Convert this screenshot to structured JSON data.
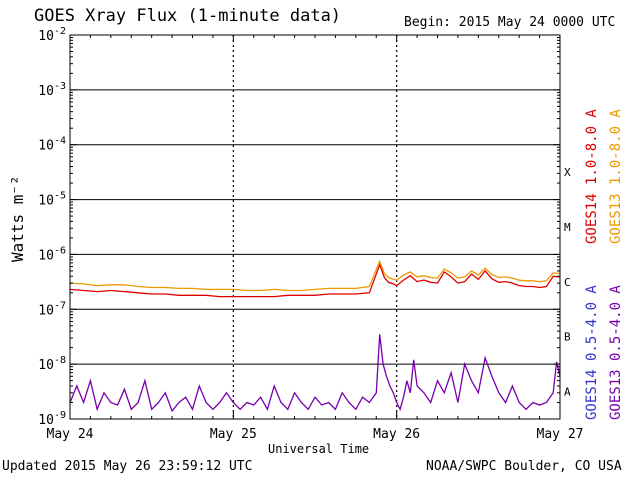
{
  "header": {
    "title": "GOES Xray Flux (1-minute data)",
    "begin": "Begin:  2015 May 24 0000 UTC"
  },
  "footer": {
    "updated": "Updated 2015 May 26 23:59:12 UTC",
    "credit": "NOAA/SWPC Boulder, CO USA"
  },
  "chart_data": {
    "type": "line",
    "title": "GOES Xray Flux (1-minute data)",
    "xlabel": "Universal Time",
    "ylabel": "Watts m⁻²",
    "yscale": "log",
    "ylim": [
      1e-09,
      0.01
    ],
    "xlim": [
      0,
      72
    ],
    "x_unit_note": "hours after 2015 May 24 0000 UTC",
    "x_ticks": [
      {
        "x": 0,
        "label": "May 24"
      },
      {
        "x": 24,
        "label": "May 25"
      },
      {
        "x": 48,
        "label": "May 26"
      },
      {
        "x": 72,
        "label": "May 27"
      }
    ],
    "y_ticks": [
      {
        "exp": -2,
        "label": "10-2"
      },
      {
        "exp": -3,
        "label": "10-3"
      },
      {
        "exp": -4,
        "label": "10-4"
      },
      {
        "exp": -5,
        "label": "10-5"
      },
      {
        "exp": -6,
        "label": "10-6"
      },
      {
        "exp": -7,
        "label": "10-7"
      },
      {
        "exp": -8,
        "label": "10-8"
      },
      {
        "exp": -9,
        "label": "10-9"
      }
    ],
    "flare_classes": [
      {
        "label": "X",
        "exp": -4
      },
      {
        "label": "M",
        "exp": -5
      },
      {
        "label": "C",
        "exp": -6
      },
      {
        "label": "B",
        "exp": -7
      },
      {
        "label": "A",
        "exp": -8
      }
    ],
    "grid": true,
    "legend_right": [
      {
        "label": "GOES14 1.0-8.0 A",
        "color": "#dd0000"
      },
      {
        "label": "GOES13 1.0-8.0 A",
        "color": "#ee9900"
      },
      {
        "label": "GOES14 0.5-4.0 A",
        "color": "#3333cc"
      },
      {
        "label": "GOES13 0.5-4.0 A",
        "color": "#7700aa"
      }
    ],
    "series": [
      {
        "name": "GOES13 1.0-8.0 A",
        "color": "#ee9900",
        "x": [
          0,
          2,
          4,
          6,
          8,
          10,
          12,
          14,
          16,
          18,
          20,
          22,
          24,
          26,
          28,
          30,
          32,
          34,
          36,
          38,
          40,
          42,
          44,
          45.5,
          46.2,
          46.8,
          47.5,
          48,
          49,
          50,
          51,
          52,
          53,
          54,
          55,
          56,
          57,
          58,
          59,
          60,
          61,
          62,
          63,
          64,
          65,
          66,
          67,
          68,
          69,
          70,
          71,
          72
        ],
        "y": [
          3e-07,
          2.9e-07,
          2.7e-07,
          2.8e-07,
          2.8e-07,
          2.6e-07,
          2.5e-07,
          2.5e-07,
          2.4e-07,
          2.4e-07,
          2.3e-07,
          2.3e-07,
          2.3e-07,
          2.2e-07,
          2.2e-07,
          2.3e-07,
          2.2e-07,
          2.2e-07,
          2.3e-07,
          2.4e-07,
          2.4e-07,
          2.4e-07,
          2.6e-07,
          7.5e-07,
          4.5e-07,
          3.8e-07,
          3.5e-07,
          3.4e-07,
          4.2e-07,
          4.8e-07,
          3.9e-07,
          4.1e-07,
          3.8e-07,
          3.7e-07,
          5.4e-07,
          4.6e-07,
          3.7e-07,
          3.9e-07,
          5e-07,
          4.2e-07,
          5.6e-07,
          4.3e-07,
          3.8e-07,
          3.9e-07,
          3.7e-07,
          3.4e-07,
          3.3e-07,
          3.3e-07,
          3.2e-07,
          3.3e-07,
          4.6e-07,
          4.5e-07
        ]
      },
      {
        "name": "GOES14 1.0-8.0 A",
        "color": "#dd0000",
        "x": [
          0,
          2,
          4,
          6,
          8,
          10,
          12,
          14,
          16,
          18,
          20,
          22,
          24,
          26,
          28,
          30,
          32,
          34,
          36,
          38,
          40,
          42,
          44,
          45.5,
          46.2,
          46.8,
          47.5,
          48,
          49,
          50,
          51,
          52,
          53,
          54,
          55,
          56,
          57,
          58,
          59,
          60,
          61,
          62,
          63,
          64,
          65,
          66,
          67,
          68,
          69,
          70,
          71,
          72
        ],
        "y": [
          2.3e-07,
          2.2e-07,
          2.1e-07,
          2.2e-07,
          2.1e-07,
          2e-07,
          1.9e-07,
          1.9e-07,
          1.8e-07,
          1.8e-07,
          1.8e-07,
          1.7e-07,
          1.7e-07,
          1.7e-07,
          1.7e-07,
          1.7e-07,
          1.8e-07,
          1.8e-07,
          1.8e-07,
          1.9e-07,
          1.9e-07,
          1.9e-07,
          2e-07,
          6.5e-07,
          3.8e-07,
          3.1e-07,
          2.9e-07,
          2.7e-07,
          3.4e-07,
          4.1e-07,
          3.2e-07,
          3.4e-07,
          3.1e-07,
          3e-07,
          4.8e-07,
          3.9e-07,
          3e-07,
          3.2e-07,
          4.4e-07,
          3.5e-07,
          5e-07,
          3.6e-07,
          3.1e-07,
          3.2e-07,
          3e-07,
          2.7e-07,
          2.6e-07,
          2.6e-07,
          2.5e-07,
          2.6e-07,
          4e-07,
          3.9e-07
        ]
      },
      {
        "name": "GOES13 0.5-4.0 A",
        "color": "#7700aa",
        "x": [
          0,
          1,
          2,
          3,
          4,
          5,
          6,
          7,
          8,
          9,
          10,
          11,
          12,
          13,
          14,
          15,
          16,
          17,
          18,
          19,
          20,
          21,
          22,
          23,
          24,
          25,
          26,
          27,
          28,
          29,
          30,
          31,
          32,
          33,
          34,
          35,
          36,
          37,
          38,
          39,
          40,
          41,
          42,
          43,
          44,
          45,
          45.5,
          46,
          46.5,
          47,
          47.5,
          48,
          48.5,
          49,
          49.5,
          50,
          50.5,
          51,
          52,
          53,
          54,
          55,
          56,
          57,
          58,
          59,
          60,
          61,
          62,
          63,
          64,
          65,
          66,
          67,
          68,
          69,
          70,
          71,
          71.5,
          72
        ],
        "y": [
          2e-09,
          4e-09,
          2e-09,
          5e-09,
          1.5e-09,
          3e-09,
          2e-09,
          1.8e-09,
          3.5e-09,
          1.5e-09,
          2e-09,
          5e-09,
          1.5e-09,
          2e-09,
          3e-09,
          1.4e-09,
          2e-09,
          2.5e-09,
          1.5e-09,
          4e-09,
          2e-09,
          1.5e-09,
          2e-09,
          3e-09,
          2e-09,
          1.5e-09,
          2e-09,
          1.8e-09,
          2.5e-09,
          1.5e-09,
          4e-09,
          2e-09,
          1.5e-09,
          3e-09,
          2e-09,
          1.5e-09,
          2.5e-09,
          1.8e-09,
          2e-09,
          1.5e-09,
          3e-09,
          2e-09,
          1.5e-09,
          2.5e-09,
          2e-09,
          3e-09,
          3.5e-08,
          1e-08,
          6e-09,
          4e-09,
          3e-09,
          2e-09,
          1.5e-09,
          2.5e-09,
          5e-09,
          3e-09,
          1.2e-08,
          4e-09,
          3e-09,
          2e-09,
          5e-09,
          3e-09,
          7e-09,
          2e-09,
          1e-08,
          5e-09,
          3e-09,
          1.3e-08,
          6e-09,
          3e-09,
          2e-09,
          4e-09,
          2e-09,
          1.5e-09,
          2e-09,
          1.8e-09,
          2e-09,
          3e-09,
          1.1e-08,
          6e-09
        ]
      }
    ]
  }
}
